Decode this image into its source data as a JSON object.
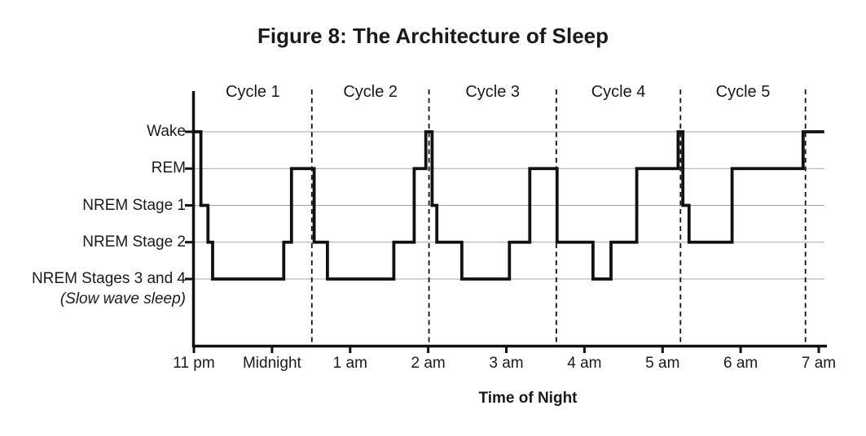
{
  "figure": {
    "title": "Figure 8: The Architecture of Sleep"
  },
  "chart_data": {
    "type": "line",
    "subtype": "step-hypnogram",
    "title": "Figure 8: The Architecture of Sleep",
    "xlabel": "Time of Night",
    "ylabel": "",
    "grid": true,
    "legend": false,
    "hours_unit": "hours after 11 pm",
    "x_axis": {
      "tick_labels": [
        "11 pm",
        "Midnight",
        "1 am",
        "2 am",
        "3 am",
        "4 am",
        "5 am",
        "6 am",
        "7 am"
      ],
      "tick_hours": [
        0,
        1,
        2,
        3,
        4,
        5,
        6,
        7,
        8
      ],
      "range_hours": [
        0,
        8.07
      ]
    },
    "y_axis": {
      "tick_labels": [
        "Wake",
        "REM",
        "NREM Stage 1",
        "NREM Stage 2",
        "NREM Stages 3 and 4"
      ],
      "tick_levels": [
        5,
        4,
        3,
        2,
        1
      ],
      "sub_label": "(Slow wave sleep)"
    },
    "stage_levels": {
      "Wake": 5,
      "REM": 4,
      "NREM Stage 1": 3,
      "NREM Stage 2": 2,
      "NREM Stages 3 and 4": 1
    },
    "cycles": [
      {
        "label": "Cycle 1",
        "start_hour": 0.0,
        "end_hour": 1.51
      },
      {
        "label": "Cycle 2",
        "start_hour": 1.51,
        "end_hour": 3.01
      },
      {
        "label": "Cycle 3",
        "start_hour": 3.01,
        "end_hour": 4.64
      },
      {
        "label": "Cycle 4",
        "start_hour": 4.64,
        "end_hour": 6.23
      },
      {
        "label": "Cycle 5",
        "start_hour": 6.23,
        "end_hour": 7.83
      }
    ],
    "segments": [
      {
        "stage": "Wake",
        "start_hour": 0.0,
        "end_hour": 0.09
      },
      {
        "stage": "NREM Stage 1",
        "start_hour": 0.09,
        "end_hour": 0.18
      },
      {
        "stage": "NREM Stage 2",
        "start_hour": 0.18,
        "end_hour": 0.24
      },
      {
        "stage": "NREM Stages 3 and 4",
        "start_hour": 0.24,
        "end_hour": 1.15
      },
      {
        "stage": "NREM Stage 2",
        "start_hour": 1.15,
        "end_hour": 1.25
      },
      {
        "stage": "REM",
        "start_hour": 1.25,
        "end_hour": 1.54
      },
      {
        "stage": "NREM Stage 2",
        "start_hour": 1.54,
        "end_hour": 1.71
      },
      {
        "stage": "NREM Stages 3 and 4",
        "start_hour": 1.71,
        "end_hour": 2.56
      },
      {
        "stage": "NREM Stage 2",
        "start_hour": 2.56,
        "end_hour": 2.82
      },
      {
        "stage": "REM",
        "start_hour": 2.82,
        "end_hour": 2.97
      },
      {
        "stage": "Wake",
        "start_hour": 2.97,
        "end_hour": 3.05
      },
      {
        "stage": "NREM Stage 1",
        "start_hour": 3.05,
        "end_hour": 3.11
      },
      {
        "stage": "NREM Stage 2",
        "start_hour": 3.11,
        "end_hour": 3.43
      },
      {
        "stage": "NREM Stages 3 and 4",
        "start_hour": 3.43,
        "end_hour": 4.04
      },
      {
        "stage": "NREM Stage 2",
        "start_hour": 4.04,
        "end_hour": 4.3
      },
      {
        "stage": "REM",
        "start_hour": 4.3,
        "end_hour": 4.65
      },
      {
        "stage": "NREM Stage 2",
        "start_hour": 4.65,
        "end_hour": 5.11
      },
      {
        "stage": "NREM Stages 3 and 4",
        "start_hour": 5.11,
        "end_hour": 5.34
      },
      {
        "stage": "NREM Stage 2",
        "start_hour": 5.34,
        "end_hour": 5.67
      },
      {
        "stage": "REM",
        "start_hour": 5.67,
        "end_hour": 6.2
      },
      {
        "stage": "Wake",
        "start_hour": 6.2,
        "end_hour": 6.26
      },
      {
        "stage": "NREM Stage 1",
        "start_hour": 6.26,
        "end_hour": 6.34
      },
      {
        "stage": "NREM Stage 2",
        "start_hour": 6.34,
        "end_hour": 6.89
      },
      {
        "stage": "REM",
        "start_hour": 6.89,
        "end_hour": 7.8
      },
      {
        "stage": "Wake",
        "start_hour": 7.8,
        "end_hour": 8.07
      }
    ],
    "colors": {
      "line": "#111111",
      "grid": "#a6a6a6",
      "boundary": "#111111",
      "text": "#1a1a1a"
    }
  }
}
